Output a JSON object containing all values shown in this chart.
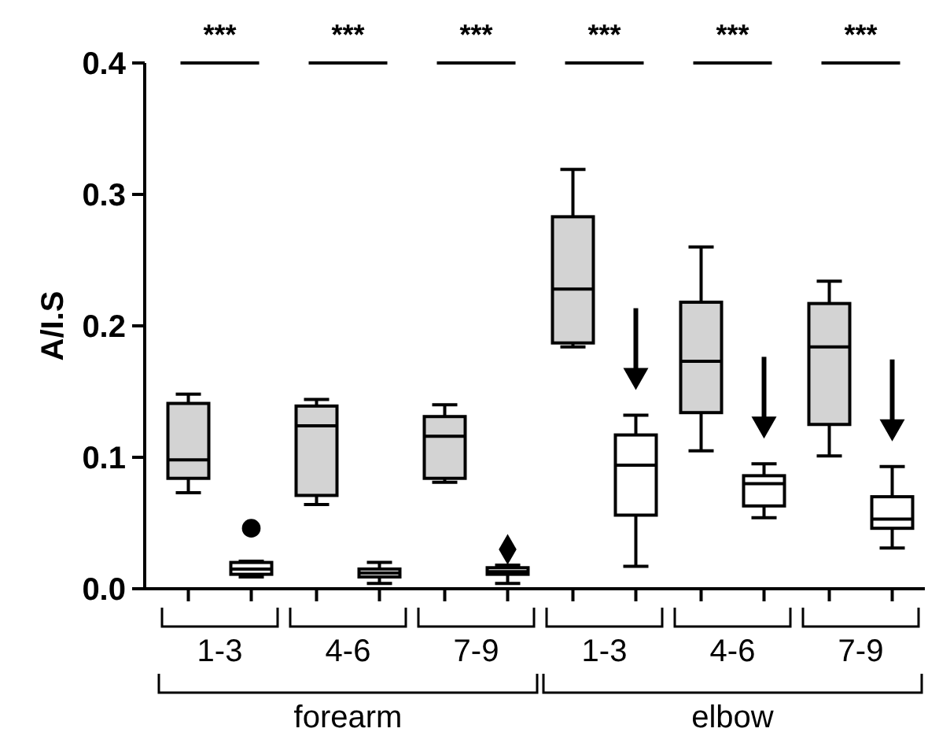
{
  "chart_data": {
    "type": "box",
    "ylabel": "A/I.S",
    "categories": [
      "1-3",
      "4-6",
      "7-9",
      "1-3",
      "4-6",
      "7-9"
    ],
    "ylim": [
      0,
      0.4
    ],
    "yticks": [
      {
        "value": 0,
        "label": "0.0"
      },
      0.1,
      0.2,
      0.3,
      0.4
    ],
    "annotations": [
      "***",
      "***",
      "***",
      "***",
      "***",
      "***",
      "forearm",
      "elbow"
    ],
    "series": [
      {
        "color": "#d3d3d3",
        "boxes": [
          {
            "low": 0.073,
            "q1": 0.084,
            "median": 0.098,
            "q3": 0.141,
            "high": 0.148
          },
          {
            "low": 0.064,
            "q1": 0.071,
            "median": 0.124,
            "q3": 0.139,
            "high": 0.144
          },
          {
            "low": 0.081,
            "q1": 0.084,
            "median": 0.116,
            "q3": 0.131,
            "high": 0.14
          },
          {
            "low": 0.184,
            "q1": 0.187,
            "median": 0.228,
            "q3": 0.283,
            "high": 0.319
          },
          {
            "low": 0.105,
            "q1": 0.134,
            "median": 0.173,
            "q3": 0.218,
            "high": 0.26
          },
          {
            "low": 0.101,
            "q1": 0.125,
            "median": 0.184,
            "q3": 0.217,
            "high": 0.234
          }
        ]
      },
      {
        "color": "#ffffff",
        "boxes": [
          {
            "low": 0.009,
            "q1": 0.011,
            "median": 0.015,
            "q3": 0.02,
            "high": 0.021
          },
          {
            "low": 0.004,
            "q1": 0.009,
            "median": 0.012,
            "q3": 0.015,
            "high": 0.02
          },
          {
            "low": 0.004,
            "q1": 0.011,
            "median": 0.013,
            "q3": 0.016,
            "high": 0.018
          },
          {
            "low": 0.017,
            "q1": 0.056,
            "median": 0.094,
            "q3": 0.117,
            "high": 0.132
          },
          {
            "low": 0.054,
            "q1": 0.063,
            "median": 0.08,
            "q3": 0.086,
            "high": 0.095
          },
          {
            "low": 0.031,
            "q1": 0.046,
            "median": 0.053,
            "q3": 0.07,
            "high": 0.093
          }
        ]
      },
      {
        "type": "scatter",
        "color": "#000000",
        "marker": "circle",
        "x": [
          "1-3"
        ],
        "values": [
          0.046
        ]
      },
      {
        "type": "scatter",
        "color": "#000000",
        "marker": "diamond",
        "x": [
          "7-9"
        ],
        "values": [
          0.03
        ]
      }
    ]
  }
}
